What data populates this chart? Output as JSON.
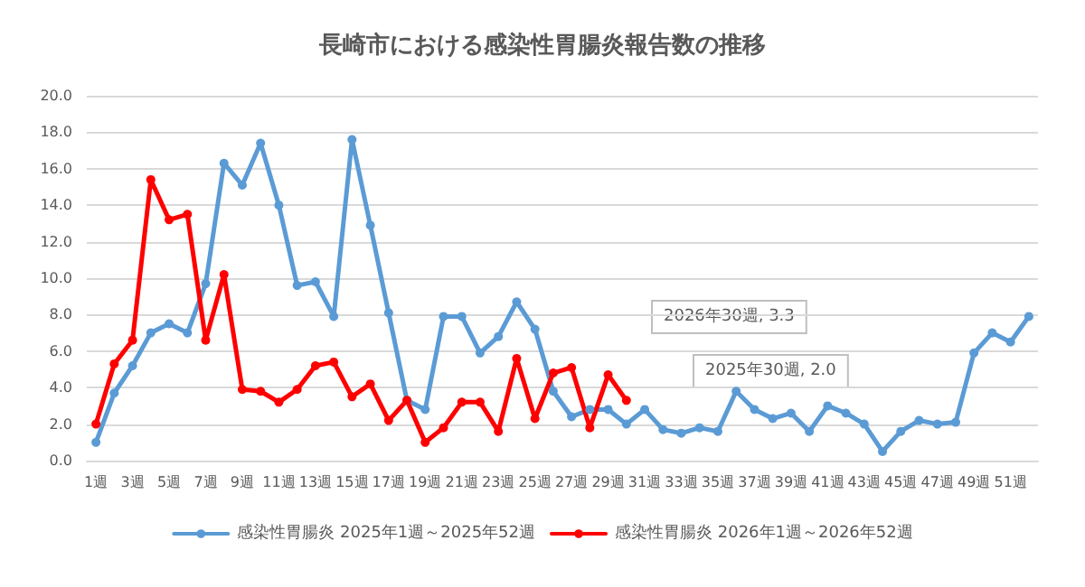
{
  "chart_data": {
    "type": "line",
    "title": "長崎市における感染性胃腸炎報告数の推移",
    "categories": [
      "1週",
      null,
      "3週",
      null,
      "5週",
      null,
      "7週",
      null,
      "9週",
      null,
      "11週",
      null,
      "13週",
      null,
      "15週",
      null,
      "17週",
      null,
      "19週",
      null,
      "21週",
      null,
      "23週",
      null,
      "25週",
      null,
      "27週",
      null,
      "29週",
      null,
      "31週",
      null,
      "33週",
      null,
      "35週",
      null,
      "37週",
      null,
      "39週",
      null,
      "41週",
      null,
      "43週",
      null,
      "45週",
      null,
      "47週",
      null,
      "49週",
      null,
      "51週",
      null
    ],
    "series": [
      {
        "name": "感染性胃腸炎 2025年1週～2025年52週",
        "color": "#5b9bd5",
        "values": [
          1.0,
          3.7,
          5.2,
          7.0,
          7.5,
          7.0,
          9.7,
          16.3,
          15.1,
          17.4,
          14.0,
          9.6,
          9.8,
          7.9,
          17.6,
          12.9,
          8.1,
          3.3,
          2.8,
          7.9,
          7.9,
          5.9,
          6.8,
          8.7,
          7.2,
          3.8,
          2.4,
          2.8,
          2.8,
          2.0,
          2.8,
          1.7,
          1.5,
          1.8,
          1.6,
          3.8,
          2.8,
          2.3,
          2.6,
          1.6,
          3.0,
          2.6,
          2.0,
          0.5,
          1.6,
          2.2,
          2.0,
          2.1,
          5.9,
          7.0,
          6.5,
          7.9
        ]
      },
      {
        "name": "感染性胃腸炎 2026年1週～2026年52週",
        "color": "#ff0000",
        "values": [
          2.0,
          5.3,
          6.6,
          15.4,
          13.2,
          13.5,
          6.6,
          10.2,
          3.9,
          3.8,
          3.2,
          3.9,
          5.2,
          5.4,
          3.5,
          4.2,
          2.2,
          3.3,
          1.0,
          1.8,
          3.2,
          3.2,
          1.6,
          5.6,
          2.3,
          4.8,
          5.1,
          1.8,
          4.7,
          3.3,
          null,
          null,
          null,
          null,
          null,
          null,
          null,
          null,
          null,
          null,
          null,
          null,
          null,
          null,
          null,
          null,
          null,
          null,
          null,
          null,
          null,
          null
        ]
      }
    ],
    "ylim": [
      0,
      20
    ],
    "yticks": [
      {
        "value": 0,
        "label": "0.0"
      },
      {
        "value": 2,
        "label": "2.0"
      },
      {
        "value": 4,
        "label": "4.0"
      },
      {
        "value": 6,
        "label": "6.0"
      },
      {
        "value": 8,
        "label": "8.0"
      },
      {
        "value": 10,
        "label": "10.0"
      },
      {
        "value": 12,
        "label": "12.0"
      },
      {
        "value": 14,
        "label": "14.0"
      },
      {
        "value": 16,
        "label": "16.0"
      },
      {
        "value": 18,
        "label": "18.0"
      },
      {
        "value": 20,
        "label": "20.0"
      }
    ],
    "annotations": [
      "2026年30週, 3.3",
      "2025年30週, 2.0"
    ],
    "grid": "y",
    "legend": "bottom",
    "marker": "circle",
    "line_style": "solid"
  }
}
